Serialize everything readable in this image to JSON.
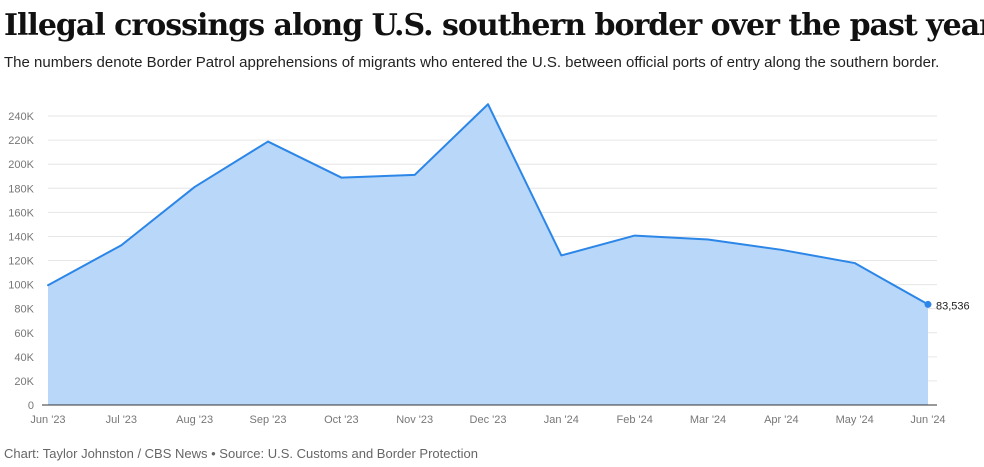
{
  "header": {
    "title": "Illegal crossings along U.S. southern border over the past year",
    "subtitle": "The numbers denote Border Patrol apprehensions of migrants who entered the U.S. between official ports of entry along the southern border."
  },
  "footer": {
    "credit": "Chart: Taylor Johnston / CBS News • Source: U.S. Customs and Border Protection"
  },
  "chart_data": {
    "type": "area",
    "categories": [
      "Jun '23",
      "Jul '23",
      "Aug '23",
      "Sep '23",
      "Oct '23",
      "Nov '23",
      "Dec '23",
      "Jan '24",
      "Feb '24",
      "Mar '24",
      "Apr '24",
      "May '24",
      "Jun '24"
    ],
    "series": [
      {
        "values": [
          99500,
          132700,
          181100,
          218800,
          188900,
          191100,
          249800,
          124200,
          140700,
          137500,
          128900,
          117900,
          83536
        ]
      }
    ],
    "ylim": [
      0,
      250000
    ],
    "yticks": [
      0,
      20000,
      40000,
      60000,
      80000,
      100000,
      120000,
      140000,
      160000,
      180000,
      200000,
      220000,
      240000
    ],
    "ytick_labels": [
      "0",
      "20K",
      "40K",
      "60K",
      "80K",
      "100K",
      "120K",
      "140K",
      "160K",
      "180K",
      "200K",
      "220K",
      "240K"
    ],
    "end_label": "83,536",
    "grid": true,
    "colors": {
      "line": "#2b86e8",
      "fill": "#b9d7f8",
      "grid": "#e6e6e6",
      "axis": "#333333",
      "tick_text": "#777777"
    }
  }
}
